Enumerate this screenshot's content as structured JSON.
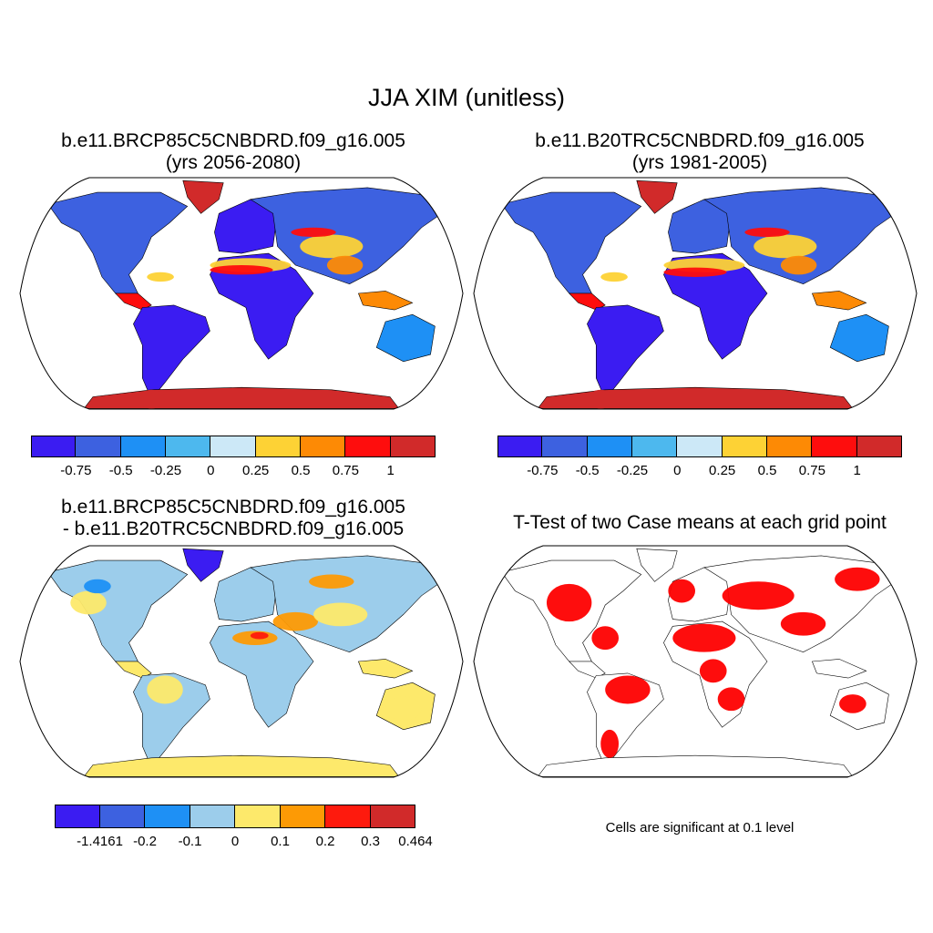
{
  "main_title": "JJA XIM (unitless)",
  "panels": [
    {
      "title_line1": "b.e11.BRCP85C5CNBDRD.f09_g16.005",
      "title_line2": "(yrs 2056-2080)"
    },
    {
      "title_line1": "b.e11.B20TRC5CNBDRD.f09_g16.005",
      "title_line2": "(yrs 1981-2005)"
    },
    {
      "title_line1": "b.e11.BRCP85C5CNBDRD.f09_g16.005",
      "title_line2": "- b.e11.B20TRC5CNBDRD.f09_g16.005"
    },
    {
      "title_line1": "T-Test of two Case means at each grid point",
      "note": "Cells are significant at 0.1 level"
    }
  ],
  "colorbar_top": {
    "colors": [
      "#3b1cf2",
      "#3d61e0",
      "#1e90f5",
      "#4db8ee",
      "#cce8f7",
      "#fdd235",
      "#fd8a05",
      "#fe0d0d",
      "#d12a2a"
    ],
    "labels": [
      "-0.75",
      "-0.5",
      "-0.25",
      "0",
      "0.25",
      "0.5",
      "0.75",
      "1"
    ]
  },
  "colorbar_diff": {
    "colors": [
      "#3b1cf2",
      "#3d61e0",
      "#1e90f5",
      "#9ccdeb",
      "#fde96b",
      "#fd9a05",
      "#fe1a0d",
      "#d12a2a"
    ],
    "labels": [
      "-1.4161",
      "-0.2",
      "-0.1",
      "0",
      "0.1",
      "0.2",
      "0.3",
      "0.464"
    ]
  },
  "chart_data": [
    {
      "type": "heatmap",
      "title": "b.e11.BRCP85C5CNBDRD.f09_g16.005 (yrs 2056-2080)",
      "levels": [
        -0.75,
        -0.5,
        -0.25,
        0,
        0.25,
        0.5,
        0.75,
        1
      ],
      "projection": "Robinson",
      "field": "JJA XIM"
    },
    {
      "type": "heatmap",
      "title": "b.e11.B20TRC5CNBDRD.f09_g16.005 (yrs 1981-2005)",
      "levels": [
        -0.75,
        -0.5,
        -0.25,
        0,
        0.25,
        0.5,
        0.75,
        1
      ],
      "projection": "Robinson",
      "field": "JJA XIM"
    },
    {
      "type": "heatmap",
      "title": "b.e11.BRCP85C5CNBDRD.f09_g16.005 - b.e11.B20TRC5CNBDRD.f09_g16.005",
      "levels": [
        -1.4161,
        -0.2,
        -0.1,
        0,
        0.1,
        0.2,
        0.3,
        0.464
      ],
      "projection": "Robinson"
    },
    {
      "type": "heatmap",
      "title": "T-Test of two Case means at each grid point",
      "significance_level": 0.1,
      "projection": "Robinson"
    }
  ]
}
